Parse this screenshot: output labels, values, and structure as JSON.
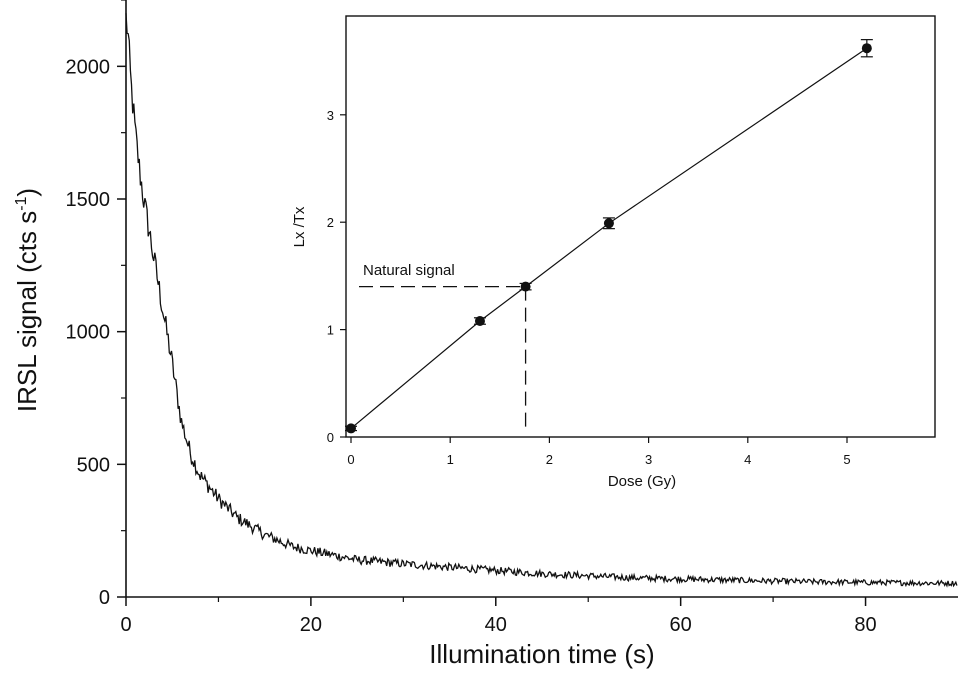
{
  "chart_data": [
    {
      "type": "line",
      "name": "main",
      "xlabel": "Illumination time (s)",
      "ylabel_main": "IRSL signal (cts s",
      "ylabel_sup": "-1",
      "ylabel_close": ")",
      "xlim": [
        0,
        90
      ],
      "ylim": [
        0,
        2250
      ],
      "xticks": [
        0,
        20,
        40,
        60,
        80
      ],
      "yticks": [
        0,
        500,
        1000,
        1500,
        2000
      ],
      "decay": {
        "x": [
          0,
          0.2,
          0.5,
          1,
          1.5,
          2,
          3,
          4,
          5,
          6,
          7,
          8,
          10,
          12,
          15,
          18,
          20,
          25,
          30,
          35,
          40,
          45,
          50,
          55,
          60,
          65,
          70,
          75,
          80,
          85,
          90
        ],
        "y": [
          2180,
          2130,
          1950,
          1750,
          1600,
          1480,
          1280,
          1080,
          880,
          660,
          540,
          460,
          370,
          300,
          235,
          190,
          175,
          140,
          125,
          112,
          100,
          88,
          80,
          72,
          68,
          64,
          60,
          57,
          55,
          53,
          52
        ]
      }
    },
    {
      "type": "scatter",
      "name": "inset",
      "xlabel": "Dose (Gy)",
      "ylabel": "Lx /Tx",
      "xlim": [
        -0.05,
        5.9
      ],
      "ylim": [
        0,
        3.92
      ],
      "xticks": [
        "0",
        "1",
        "2",
        "3",
        "4",
        "5"
      ],
      "yticks": [
        "0",
        "1",
        "2",
        "3"
      ],
      "points": {
        "x": [
          0,
          1.3,
          1.76,
          2.6,
          5.2
        ],
        "y": [
          0.08,
          1.08,
          1.4,
          1.99,
          3.62
        ],
        "err": [
          0.02,
          0.03,
          0.03,
          0.05,
          0.08
        ]
      },
      "fit": {
        "x": [
          0,
          1.3,
          1.76,
          2.6,
          5.2
        ],
        "y": [
          0.08,
          1.08,
          1.4,
          1.99,
          3.62
        ]
      },
      "natural_signal": {
        "label": "Natural signal",
        "dose": 1.76,
        "value": 1.4
      }
    }
  ]
}
